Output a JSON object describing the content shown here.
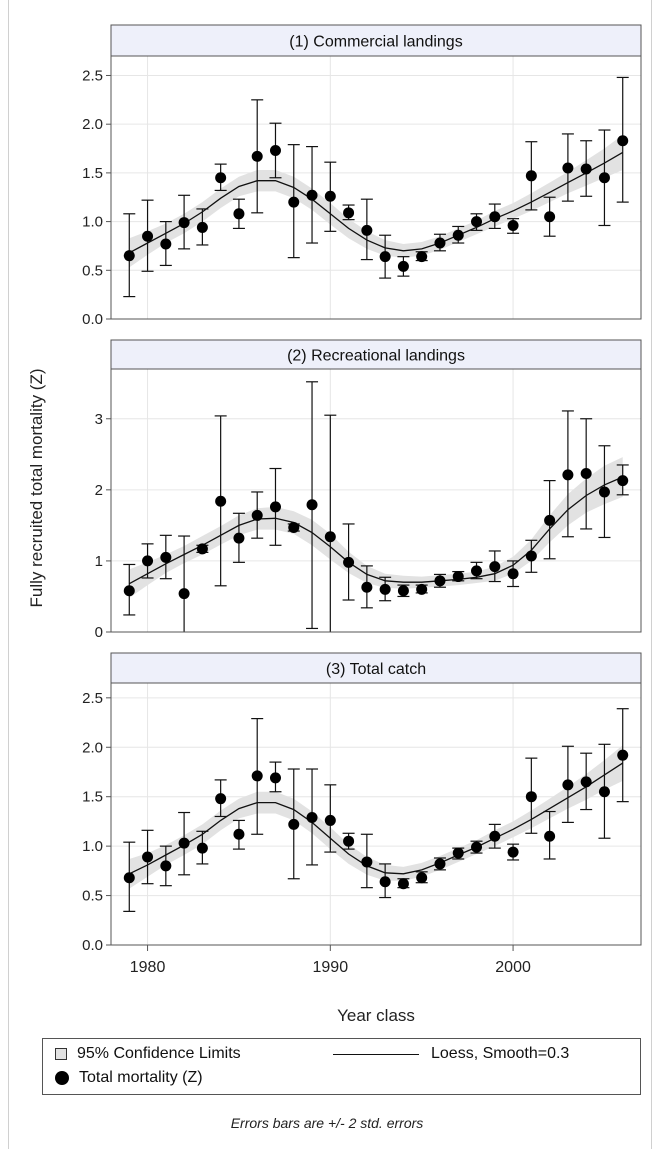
{
  "chart_data": {
    "type": "scatter",
    "xlabel": "Year class",
    "ylabel": "Fully recruited total mortality (Z)",
    "xlim": [
      1978,
      2007
    ],
    "x_ticks": [
      1980,
      1990,
      2000
    ],
    "grid": true,
    "footnote": "Errors bars are +/- 2 std. errors",
    "legend": {
      "placement": "bottom",
      "items": [
        {
          "kind": "band",
          "label": "95% Confidence Limits"
        },
        {
          "kind": "line",
          "label": "Loess, Smooth=0.3"
        },
        {
          "kind": "marker",
          "label": "Total mortality (Z)"
        }
      ]
    },
    "panels": [
      {
        "title": "(1) Commercial landings",
        "ylim": [
          0,
          2.7
        ],
        "y_ticks": [
          "0.0",
          "0.5",
          "1.0",
          "1.5",
          "2.0",
          "2.5"
        ],
        "series": [
          {
            "x": [
              1979,
              1980,
              1981,
              1982,
              1983,
              1984,
              1985,
              1986,
              1987,
              1988,
              1989,
              1990,
              1991,
              1992,
              1993,
              1994,
              1995,
              1996,
              1997,
              1998,
              1999,
              2000,
              2001,
              2002,
              2003,
              2004,
              2005,
              2006
            ],
            "y": [
              0.65,
              0.85,
              0.77,
              0.99,
              0.94,
              1.45,
              1.08,
              1.67,
              1.73,
              1.2,
              1.27,
              1.26,
              1.09,
              0.91,
              0.64,
              0.54,
              0.64,
              0.78,
              0.86,
              1.0,
              1.05,
              0.96,
              1.47,
              1.05,
              1.55,
              1.54,
              1.45,
              1.83
            ],
            "lower": [
              0.23,
              0.49,
              0.55,
              0.72,
              0.76,
              1.32,
              0.93,
              1.09,
              1.45,
              0.63,
              0.78,
              0.9,
              1.02,
              0.61,
              0.42,
              0.44,
              0.6,
              0.7,
              0.78,
              0.91,
              0.93,
              0.88,
              1.12,
              0.85,
              1.21,
              1.26,
              0.96,
              1.2
            ],
            "upper": [
              1.08,
              1.22,
              1.0,
              1.27,
              1.13,
              1.59,
              1.23,
              2.25,
              2.01,
              1.79,
              1.77,
              1.61,
              1.17,
              1.23,
              0.86,
              0.64,
              0.69,
              0.87,
              0.95,
              1.08,
              1.18,
              1.03,
              1.82,
              1.25,
              1.9,
              1.83,
              1.94,
              2.48
            ]
          }
        ],
        "loess": {
          "x": [
            1979,
            1980,
            1981,
            1982,
            1983,
            1984,
            1985,
            1986,
            1987,
            1988,
            1989,
            1990,
            1991,
            1992,
            1993,
            1994,
            1995,
            1996,
            1997,
            1998,
            1999,
            2000,
            2001,
            2002,
            2003,
            2004,
            2005,
            2006
          ],
          "y": [
            0.68,
            0.78,
            0.88,
            0.98,
            1.1,
            1.24,
            1.36,
            1.42,
            1.42,
            1.35,
            1.23,
            1.08,
            0.93,
            0.81,
            0.73,
            0.7,
            0.72,
            0.78,
            0.86,
            0.94,
            1.03,
            1.11,
            1.2,
            1.3,
            1.4,
            1.5,
            1.6,
            1.71
          ],
          "lower": [
            0.53,
            0.66,
            0.78,
            0.88,
            1.0,
            1.14,
            1.26,
            1.31,
            1.31,
            1.24,
            1.12,
            0.97,
            0.83,
            0.72,
            0.65,
            0.63,
            0.65,
            0.71,
            0.79,
            0.87,
            0.95,
            1.03,
            1.11,
            1.2,
            1.29,
            1.37,
            1.45,
            1.53
          ],
          "upper": [
            0.83,
            0.9,
            0.98,
            1.08,
            1.2,
            1.34,
            1.46,
            1.53,
            1.53,
            1.46,
            1.34,
            1.19,
            1.03,
            0.9,
            0.81,
            0.77,
            0.79,
            0.85,
            0.93,
            1.01,
            1.11,
            1.19,
            1.29,
            1.4,
            1.51,
            1.63,
            1.75,
            1.89
          ]
        }
      },
      {
        "title": "(2) Recreational landings",
        "ylim": [
          0,
          3.7
        ],
        "y_ticks": [
          "0",
          "1",
          "2",
          "3"
        ],
        "series": [
          {
            "x": [
              1979,
              1980,
              1981,
              1982,
              1983,
              1984,
              1985,
              1986,
              1987,
              1988,
              1989,
              1990,
              1991,
              1992,
              1993,
              1994,
              1995,
              1996,
              1997,
              1998,
              1999,
              2000,
              2001,
              2002,
              2003,
              2004,
              2005,
              2006
            ],
            "y": [
              0.58,
              1.0,
              1.05,
              0.54,
              1.17,
              1.84,
              1.32,
              1.64,
              1.76,
              1.47,
              1.79,
              1.34,
              0.98,
              0.63,
              0.6,
              0.58,
              0.6,
              0.72,
              0.78,
              0.86,
              0.92,
              0.82,
              1.07,
              1.57,
              2.21,
              2.23,
              1.97,
              2.13
            ],
            "lower": [
              0.24,
              0.76,
              0.75,
              -0.3,
              1.12,
              0.65,
              0.98,
              1.32,
              1.22,
              1.42,
              0.05,
              -0.3,
              0.45,
              0.34,
              0.44,
              0.5,
              0.55,
              0.63,
              0.72,
              0.75,
              0.71,
              0.64,
              0.84,
              1.03,
              1.34,
              1.45,
              1.33,
              1.93
            ],
            "upper": [
              0.95,
              1.24,
              1.36,
              1.35,
              1.22,
              3.04,
              1.67,
              1.97,
              2.3,
              1.52,
              3.52,
              3.05,
              1.52,
              0.93,
              0.77,
              0.66,
              0.66,
              0.81,
              0.85,
              0.98,
              1.14,
              1.0,
              1.29,
              2.13,
              3.11,
              3.0,
              2.62,
              2.35
            ]
          }
        ],
        "loess": {
          "x": [
            1979,
            1980,
            1981,
            1982,
            1983,
            1984,
            1985,
            1986,
            1987,
            1988,
            1989,
            1990,
            1991,
            1992,
            1993,
            1994,
            1995,
            1996,
            1997,
            1998,
            1999,
            2000,
            2001,
            2002,
            2003,
            2004,
            2005,
            2006
          ],
          "y": [
            0.68,
            0.82,
            0.96,
            1.09,
            1.22,
            1.36,
            1.5,
            1.59,
            1.6,
            1.54,
            1.4,
            1.2,
            0.98,
            0.81,
            0.72,
            0.7,
            0.7,
            0.72,
            0.74,
            0.77,
            0.82,
            0.94,
            1.15,
            1.45,
            1.72,
            1.92,
            2.07,
            2.18
          ],
          "lower": [
            0.48,
            0.66,
            0.83,
            0.97,
            1.09,
            1.23,
            1.36,
            1.44,
            1.44,
            1.38,
            1.22,
            1.02,
            0.83,
            0.69,
            0.62,
            0.61,
            0.62,
            0.64,
            0.66,
            0.69,
            0.72,
            0.82,
            1.0,
            1.26,
            1.5,
            1.68,
            1.8,
            1.9
          ],
          "upper": [
            0.88,
            0.98,
            1.09,
            1.21,
            1.35,
            1.49,
            1.64,
            1.74,
            1.76,
            1.7,
            1.58,
            1.38,
            1.13,
            0.93,
            0.82,
            0.79,
            0.78,
            0.8,
            0.82,
            0.85,
            0.92,
            1.06,
            1.3,
            1.64,
            1.94,
            2.16,
            2.34,
            2.46
          ]
        }
      },
      {
        "title": "(3) Total catch",
        "ylim": [
          0,
          2.65
        ],
        "y_ticks": [
          "0.0",
          "0.5",
          "1.0",
          "1.5",
          "2.0",
          "2.5"
        ],
        "series": [
          {
            "x": [
              1979,
              1980,
              1981,
              1982,
              1983,
              1984,
              1985,
              1986,
              1987,
              1988,
              1989,
              1990,
              1991,
              1992,
              1993,
              1994,
              1995,
              1996,
              1997,
              1998,
              1999,
              2000,
              2001,
              2002,
              2003,
              2004,
              2005,
              2006
            ],
            "y": [
              0.68,
              0.89,
              0.8,
              1.03,
              0.98,
              1.48,
              1.12,
              1.71,
              1.69,
              1.22,
              1.29,
              1.26,
              1.05,
              0.84,
              0.64,
              0.62,
              0.68,
              0.82,
              0.93,
              0.99,
              1.1,
              0.94,
              1.5,
              1.1,
              1.62,
              1.65,
              1.55,
              1.92
            ],
            "lower": [
              0.34,
              0.62,
              0.6,
              0.71,
              0.82,
              1.3,
              0.97,
              1.12,
              1.55,
              0.67,
              0.81,
              0.94,
              0.97,
              0.58,
              0.48,
              0.58,
              0.63,
              0.76,
              0.87,
              0.93,
              0.98,
              0.86,
              1.13,
              0.87,
              1.24,
              1.37,
              1.08,
              1.45
            ],
            "upper": [
              1.04,
              1.16,
              1.0,
              1.34,
              1.15,
              1.67,
              1.26,
              2.29,
              1.85,
              1.78,
              1.78,
              1.62,
              1.13,
              1.12,
              0.82,
              0.67,
              0.74,
              0.88,
              0.98,
              1.05,
              1.22,
              1.02,
              1.89,
              1.35,
              2.01,
              1.94,
              2.03,
              2.39
            ]
          }
        ],
        "loess": {
          "x": [
            1979,
            1980,
            1981,
            1982,
            1983,
            1984,
            1985,
            1986,
            1987,
            1988,
            1989,
            1990,
            1991,
            1992,
            1993,
            1994,
            1995,
            1996,
            1997,
            1998,
            1999,
            2000,
            2001,
            2002,
            2003,
            2004,
            2005,
            2006
          ],
          "y": [
            0.72,
            0.81,
            0.91,
            1.01,
            1.12,
            1.26,
            1.38,
            1.44,
            1.44,
            1.37,
            1.24,
            1.08,
            0.92,
            0.8,
            0.73,
            0.72,
            0.76,
            0.83,
            0.91,
            0.99,
            1.08,
            1.17,
            1.27,
            1.38,
            1.49,
            1.6,
            1.72,
            1.84
          ],
          "lower": [
            0.57,
            0.69,
            0.81,
            0.91,
            1.02,
            1.16,
            1.28,
            1.33,
            1.33,
            1.26,
            1.13,
            0.97,
            0.82,
            0.71,
            0.65,
            0.65,
            0.69,
            0.76,
            0.84,
            0.92,
            1.0,
            1.09,
            1.18,
            1.28,
            1.38,
            1.47,
            1.57,
            1.66
          ],
          "upper": [
            0.87,
            0.93,
            1.01,
            1.11,
            1.22,
            1.36,
            1.48,
            1.55,
            1.55,
            1.48,
            1.35,
            1.19,
            1.02,
            0.89,
            0.81,
            0.79,
            0.83,
            0.9,
            0.98,
            1.06,
            1.16,
            1.25,
            1.36,
            1.48,
            1.6,
            1.73,
            1.87,
            2.02
          ]
        }
      }
    ]
  },
  "colors": {
    "band": "#e2e2e2",
    "grid": "#e6e6e6",
    "header_fill": "#eef0fa",
    "axis": "#555555",
    "marker": "#000000"
  }
}
